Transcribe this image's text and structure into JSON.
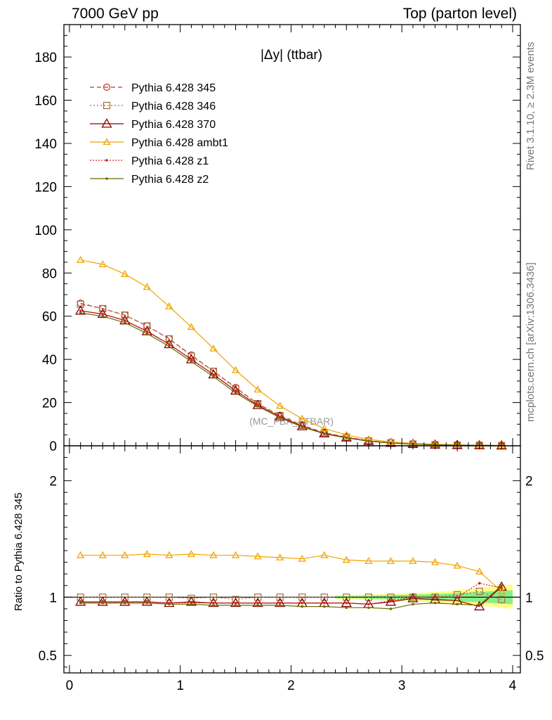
{
  "header": {
    "left": "7000 GeV pp",
    "right": "Top (parton level)"
  },
  "side_text": {
    "top": "Rivet 3.1.10, ≥ 2.3M events",
    "bottom": "mcplots.cern.ch [arXiv:1306.3436]"
  },
  "chart_data": [
    {
      "type": "line",
      "title": "|Δy| (ttbar)",
      "watermark": "(MC_FBA_TTBAR)",
      "xlim": [
        -0.05,
        4.07
      ],
      "ylim": [
        0,
        195
      ],
      "yticks": [
        0,
        20,
        40,
        60,
        80,
        100,
        120,
        140,
        160,
        180
      ],
      "x": [
        0.1,
        0.3,
        0.5,
        0.7,
        0.9,
        1.1,
        1.3,
        1.5,
        1.7,
        1.9,
        2.1,
        2.3,
        2.5,
        2.7,
        2.9,
        3.1,
        3.3,
        3.5,
        3.7,
        3.9
      ],
      "legend_position": "top-left",
      "series": [
        {
          "name": "Pythia 6.428 345",
          "color": "#c0392b",
          "marker": "circle",
          "dash": "6,4",
          "values": [
            66,
            63.5,
            60.5,
            55.5,
            49.5,
            42,
            34.5,
            27,
            19.5,
            14,
            9.5,
            6,
            4,
            2.3,
            1.4,
            0.8,
            0.5,
            0.3,
            0.2,
            0.1
          ]
        },
        {
          "name": "Pythia 6.428 346",
          "color": "#a0703c",
          "marker": "square",
          "dash": "2,3",
          "values": [
            65.5,
            63.5,
            60.5,
            55.5,
            49.5,
            41.5,
            34.5,
            26.5,
            19.5,
            14,
            9.5,
            6,
            4,
            2.3,
            1.4,
            0.8,
            0.5,
            0.3,
            0.2,
            0.1
          ]
        },
        {
          "name": "Pythia 6.428 370",
          "color": "#8b0000",
          "marker": "triangle-big",
          "dash": "",
          "values": [
            62.5,
            61,
            58,
            53,
            47,
            40,
            33,
            25.5,
            18.8,
            13.5,
            9,
            5.7,
            3.8,
            2.2,
            1.3,
            0.8,
            0.5,
            0.3,
            0.2,
            0.1
          ]
        },
        {
          "name": "Pythia 6.428 ambt1",
          "color": "#f0a500",
          "marker": "triangle",
          "dash": "",
          "values": [
            86,
            84,
            79.5,
            73.5,
            64.5,
            55,
            45,
            35,
            26,
            18.5,
            12.5,
            8,
            5,
            3,
            1.8,
            1.1,
            0.7,
            0.4,
            0.25,
            0.12
          ]
        },
        {
          "name": "Pythia 6.428 z1",
          "color": "#dd2222",
          "marker": "dot",
          "dash": "2,2",
          "values": [
            62.5,
            61,
            58,
            53,
            47,
            40,
            33,
            25.5,
            18.8,
            13.5,
            9,
            5.7,
            3.8,
            2.2,
            1.3,
            0.8,
            0.5,
            0.3,
            0.2,
            0.1
          ]
        },
        {
          "name": "Pythia 6.428 z2",
          "color": "#6b6b00",
          "marker": "dot",
          "dash": "",
          "values": [
            61.5,
            60,
            57,
            52,
            46,
            39,
            32,
            24.5,
            18.3,
            13,
            8.8,
            5.5,
            3.6,
            2.1,
            1.25,
            0.75,
            0.48,
            0.28,
            0.18,
            0.09
          ]
        }
      ]
    },
    {
      "type": "line",
      "ylabel": "Ratio to Pythia 6.428 345",
      "xlim": [
        -0.05,
        4.07
      ],
      "ylim": [
        0.35,
        2.3
      ],
      "yticks": [
        0.5,
        1,
        2
      ],
      "ytick_labels": [
        "0.5",
        "1",
        "2"
      ],
      "xticks": [
        0,
        1,
        2,
        3,
        4
      ],
      "xtick_labels": [
        "0",
        "1",
        "2",
        "3",
        "4"
      ],
      "x": [
        0.1,
        0.3,
        0.5,
        0.7,
        0.9,
        1.1,
        1.3,
        1.5,
        1.7,
        1.9,
        2.1,
        2.3,
        2.5,
        2.7,
        2.9,
        3.1,
        3.3,
        3.5,
        3.7,
        3.9
      ],
      "band": {
        "x": [
          2.4,
          2.6,
          2.8,
          3.0,
          3.2,
          3.4,
          3.6,
          3.8,
          4.0
        ],
        "yellow_lo": [
          0.985,
          0.98,
          0.975,
          0.97,
          0.96,
          0.95,
          0.93,
          0.92,
          0.9
        ],
        "yellow_hi": [
          1.015,
          1.02,
          1.025,
          1.03,
          1.04,
          1.05,
          1.07,
          1.09,
          1.11
        ],
        "green_lo": [
          0.99,
          0.99,
          0.985,
          0.98,
          0.975,
          0.97,
          0.96,
          0.95,
          0.94
        ],
        "green_hi": [
          1.01,
          1.01,
          1.015,
          1.02,
          1.025,
          1.03,
          1.04,
          1.05,
          1.06
        ],
        "yellow": "#ffff88",
        "green": "#88ee88"
      },
      "series": [
        {
          "name": "Pythia 6.428 346",
          "color": "#a0703c",
          "marker": "square",
          "dash": "2,3",
          "values": [
            1.0,
            1.0,
            1.0,
            1.0,
            1.0,
            0.99,
            1.0,
            0.98,
            1.0,
            1.0,
            1.0,
            1.0,
            1.0,
            1.0,
            1.0,
            1.0,
            1.0,
            1.02,
            1.05,
            0.98
          ]
        },
        {
          "name": "Pythia 6.428 370",
          "color": "#8b0000",
          "marker": "triangle-big",
          "dash": "",
          "values": [
            0.96,
            0.96,
            0.96,
            0.96,
            0.95,
            0.96,
            0.95,
            0.95,
            0.95,
            0.95,
            0.95,
            0.95,
            0.95,
            0.94,
            0.96,
            0.99,
            0.98,
            0.97,
            0.92,
            1.09
          ]
        },
        {
          "name": "Pythia 6.428 ambt1",
          "color": "#f0a500",
          "marker": "triangle",
          "dash": "",
          "values": [
            1.36,
            1.36,
            1.36,
            1.37,
            1.36,
            1.37,
            1.36,
            1.36,
            1.35,
            1.34,
            1.33,
            1.36,
            1.32,
            1.31,
            1.31,
            1.31,
            1.3,
            1.27,
            1.22,
            1.05
          ]
        },
        {
          "name": "Pythia 6.428 z1",
          "color": "#dd2222",
          "marker": "dot",
          "dash": "2,2",
          "values": [
            0.96,
            0.96,
            0.96,
            0.96,
            0.95,
            0.95,
            0.95,
            0.95,
            0.95,
            0.95,
            0.95,
            0.95,
            0.95,
            0.94,
            0.97,
            1.0,
            1.0,
            1.0,
            1.12,
            1.08
          ]
        },
        {
          "name": "Pythia 6.428 z2",
          "color": "#6b6b00",
          "marker": "dot",
          "dash": "",
          "values": [
            0.95,
            0.95,
            0.95,
            0.95,
            0.94,
            0.94,
            0.93,
            0.93,
            0.93,
            0.93,
            0.92,
            0.92,
            0.91,
            0.91,
            0.9,
            0.94,
            0.95,
            0.94,
            0.93,
            1.1
          ]
        }
      ]
    }
  ]
}
